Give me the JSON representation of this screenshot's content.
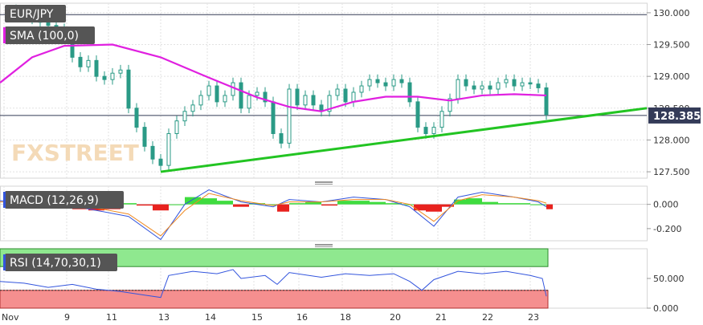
{
  "chart_data": [
    {
      "type": "candlestick",
      "title": "EUR/JPY",
      "watermark": "FXSTREET",
      "ylim": [
        127.4,
        130.15
      ],
      "yticks": [
        "130.000",
        "129.500",
        "129.000",
        "128.500",
        "128.000",
        "127.500"
      ],
      "current_price": "128.385",
      "overlays": [
        {
          "name": "SMA (100,0)",
          "color": "#e020e0",
          "points": [
            [
              0,
              128.9
            ],
            [
              40,
              129.3
            ],
            [
              80,
              129.48
            ],
            [
              140,
              129.5
            ],
            [
              200,
              129.3
            ],
            [
              260,
              128.98
            ],
            [
              320,
              128.67
            ],
            [
              360,
              128.52
            ],
            [
              400,
              128.45
            ],
            [
              440,
              128.6
            ],
            [
              480,
              128.68
            ],
            [
              520,
              128.68
            ],
            [
              560,
              128.62
            ],
            [
              600,
              128.7
            ],
            [
              640,
              128.72
            ],
            [
              680,
              128.7
            ]
          ]
        },
        {
          "name": "trendline",
          "color": "#22c422",
          "points": [
            [
              200,
              127.5
            ],
            [
              805,
              128.5
            ]
          ]
        }
      ],
      "horizontal_lines": [
        128.385,
        129.97
      ],
      "candles": [
        [
          20,
          130.0
        ],
        [
          30,
          129.95
        ],
        [
          40,
          129.9
        ],
        [
          50,
          129.85
        ],
        [
          60,
          129.8
        ],
        [
          70,
          129.75
        ],
        [
          80,
          129.6
        ],
        [
          90,
          129.3
        ],
        [
          100,
          129.15
        ],
        [
          110,
          129.25
        ],
        [
          120,
          129.0
        ],
        [
          130,
          128.95
        ],
        [
          140,
          129.05
        ],
        [
          150,
          129.1
        ],
        [
          160,
          128.5
        ],
        [
          170,
          128.2
        ],
        [
          180,
          127.9
        ],
        [
          190,
          127.7
        ],
        [
          200,
          127.6
        ],
        [
          210,
          128.1
        ],
        [
          220,
          128.3
        ],
        [
          230,
          128.45
        ],
        [
          240,
          128.55
        ],
        [
          250,
          128.7
        ],
        [
          260,
          128.85
        ],
        [
          270,
          128.6
        ],
        [
          280,
          128.7
        ],
        [
          290,
          128.9
        ],
        [
          300,
          128.5
        ],
        [
          310,
          128.7
        ],
        [
          320,
          128.75
        ],
        [
          330,
          128.6
        ],
        [
          340,
          128.1
        ],
        [
          350,
          127.95
        ],
        [
          360,
          128.8
        ],
        [
          370,
          128.55
        ],
        [
          380,
          128.7
        ],
        [
          390,
          128.55
        ],
        [
          400,
          128.45
        ],
        [
          410,
          128.7
        ],
        [
          420,
          128.8
        ],
        [
          430,
          128.6
        ],
        [
          440,
          128.75
        ],
        [
          450,
          128.85
        ],
        [
          460,
          128.95
        ],
        [
          470,
          128.9
        ],
        [
          480,
          128.85
        ],
        [
          490,
          128.95
        ],
        [
          500,
          128.9
        ],
        [
          510,
          128.6
        ],
        [
          520,
          128.2
        ],
        [
          530,
          128.1
        ],
        [
          540,
          128.2
        ],
        [
          550,
          128.45
        ],
        [
          560,
          128.65
        ],
        [
          570,
          128.95
        ],
        [
          580,
          128.85
        ],
        [
          590,
          128.8
        ],
        [
          600,
          128.85
        ],
        [
          610,
          128.8
        ],
        [
          620,
          128.9
        ],
        [
          630,
          128.95
        ],
        [
          640,
          128.85
        ],
        [
          650,
          128.9
        ],
        [
          660,
          128.88
        ],
        [
          670,
          128.82
        ],
        [
          680,
          128.4
        ]
      ]
    },
    {
      "type": "area",
      "title": "MACD (12,26,9)",
      "ylim": [
        -0.3,
        0.15
      ],
      "yticks": [
        "0.000",
        "-0.200"
      ],
      "histogram": [
        [
          10,
          0.02
        ],
        [
          30,
          0.03
        ],
        [
          50,
          0.02
        ],
        [
          70,
          0.0
        ],
        [
          90,
          -0.04
        ],
        [
          110,
          -0.05
        ],
        [
          130,
          -0.04
        ],
        [
          150,
          0.01
        ],
        [
          170,
          -0.01
        ],
        [
          190,
          -0.05
        ],
        [
          210,
          0.0
        ],
        [
          230,
          0.06
        ],
        [
          250,
          0.05
        ],
        [
          270,
          0.03
        ],
        [
          290,
          -0.02
        ],
        [
          310,
          0.01
        ],
        [
          330,
          0.0
        ],
        [
          345,
          -0.06
        ],
        [
          360,
          0.01
        ],
        [
          380,
          0.02
        ],
        [
          400,
          -0.01
        ],
        [
          420,
          0.03
        ],
        [
          440,
          0.03
        ],
        [
          460,
          0.02
        ],
        [
          480,
          0.01
        ],
        [
          500,
          0.0
        ],
        [
          515,
          -0.05
        ],
        [
          530,
          -0.06
        ],
        [
          550,
          -0.02
        ],
        [
          565,
          0.04
        ],
        [
          580,
          0.05
        ],
        [
          600,
          0.02
        ],
        [
          620,
          0.01
        ],
        [
          640,
          0.01
        ],
        [
          660,
          0.0
        ],
        [
          680,
          -0.04
        ]
      ],
      "series": [
        {
          "color": "#3355dd",
          "points": [
            [
              0,
              0.03
            ],
            [
              40,
              0.02
            ],
            [
              80,
              0.0
            ],
            [
              120,
              -0.05
            ],
            [
              160,
              -0.1
            ],
            [
              200,
              -0.29
            ],
            [
              230,
              0.0
            ],
            [
              260,
              0.12
            ],
            [
              300,
              0.02
            ],
            [
              340,
              -0.02
            ],
            [
              360,
              0.04
            ],
            [
              400,
              0.02
            ],
            [
              440,
              0.06
            ],
            [
              480,
              0.04
            ],
            [
              510,
              -0.02
            ],
            [
              540,
              -0.18
            ],
            [
              570,
              0.06
            ],
            [
              600,
              0.1
            ],
            [
              640,
              0.06
            ],
            [
              670,
              0.02
            ],
            [
              680,
              -0.02
            ]
          ]
        },
        {
          "color": "#f08a20",
          "points": [
            [
              0,
              0.02
            ],
            [
              40,
              0.02
            ],
            [
              80,
              0.01
            ],
            [
              120,
              -0.03
            ],
            [
              160,
              -0.08
            ],
            [
              200,
              -0.26
            ],
            [
              230,
              -0.05
            ],
            [
              260,
              0.09
            ],
            [
              300,
              0.03
            ],
            [
              340,
              -0.01
            ],
            [
              360,
              0.02
            ],
            [
              400,
              0.02
            ],
            [
              440,
              0.04
            ],
            [
              480,
              0.04
            ],
            [
              510,
              0.0
            ],
            [
              540,
              -0.14
            ],
            [
              570,
              0.03
            ],
            [
              600,
              0.08
            ],
            [
              640,
              0.06
            ],
            [
              670,
              0.03
            ],
            [
              680,
              0.01
            ]
          ]
        }
      ]
    },
    {
      "type": "line",
      "title": "RSI (14,70,30,1)",
      "ylim": [
        0,
        100
      ],
      "yticks": [
        "50.000",
        "0.000"
      ],
      "levels": [
        70,
        30
      ],
      "series": [
        {
          "color": "#3355dd",
          "points": [
            [
              0,
              45
            ],
            [
              30,
              42
            ],
            [
              60,
              35
            ],
            [
              90,
              40
            ],
            [
              120,
              32
            ],
            [
              150,
              28
            ],
            [
              180,
              22
            ],
            [
              200,
              18
            ],
            [
              210,
              55
            ],
            [
              240,
              62
            ],
            [
              270,
              58
            ],
            [
              290,
              65
            ],
            [
              300,
              50
            ],
            [
              330,
              55
            ],
            [
              345,
              40
            ],
            [
              360,
              60
            ],
            [
              400,
              52
            ],
            [
              430,
              58
            ],
            [
              460,
              55
            ],
            [
              490,
              58
            ],
            [
              510,
              45
            ],
            [
              525,
              30
            ],
            [
              540,
              48
            ],
            [
              570,
              62
            ],
            [
              600,
              58
            ],
            [
              630,
              62
            ],
            [
              660,
              55
            ],
            [
              675,
              50
            ],
            [
              680,
              20
            ]
          ]
        }
      ]
    }
  ],
  "x_labels": [
    "Nov",
    "9",
    "11",
    "13",
    "14",
    "15",
    "16",
    "18",
    "20",
    "21",
    "22",
    "23"
  ]
}
